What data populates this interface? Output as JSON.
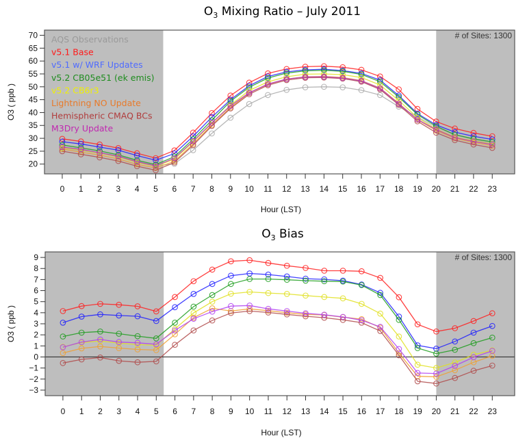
{
  "chart_data": [
    {
      "type": "line",
      "title": "O3 Mixing Ratio – July 2011",
      "title_parts": {
        "pre": "O",
        "sub": "3",
        "post": " Mixing Ratio – July 2011"
      },
      "xlabel": "Hour (LST)",
      "ylabel": "O3 ( ppb )",
      "x": [
        0,
        1,
        2,
        3,
        4,
        5,
        6,
        7,
        8,
        9,
        10,
        11,
        12,
        13,
        14,
        15,
        16,
        17,
        18,
        19,
        20,
        21,
        22,
        23
      ],
      "x_tick_labels": [
        "0",
        "1",
        "2",
        "3",
        "4",
        "5",
        "6",
        "7",
        "8",
        "9",
        "10",
        "11",
        "12",
        "13",
        "14",
        "15",
        "16",
        "17",
        "18",
        "19",
        "20",
        "21",
        "22",
        "23"
      ],
      "ylim": [
        16.2,
        72
      ],
      "xlim": [
        -0.95,
        24.2
      ],
      "y_ticks": [
        20,
        25,
        30,
        35,
        40,
        45,
        50,
        55,
        60,
        65,
        70
      ],
      "y_tick_labels": [
        "20",
        "25",
        "30",
        "35",
        "40",
        "45",
        "50",
        "55",
        "60",
        "65",
        "70"
      ],
      "shaded_ranges": [
        [
          -0.95,
          5.4
        ],
        [
          20,
          24.2
        ]
      ],
      "zero_line": false,
      "annotation": "# of Sites: 1300",
      "annotation_position": "top-right",
      "legend_position": "top-left",
      "grid": false,
      "series": [
        {
          "name": "AQS Observations",
          "color": "#a9a9a9",
          "legend_color": "#9a9a9a",
          "values": [
            26.0,
            25.2,
            24.2,
            23.2,
            21.2,
            19.3,
            20.1,
            25.4,
            31.9,
            38.0,
            43.3,
            46.8,
            48.8,
            49.8,
            50.0,
            49.8,
            48.7,
            46.8,
            42.3,
            38.3,
            34.3,
            31.3,
            29.5,
            28.0
          ]
        },
        {
          "name": "v5.1 Base",
          "color": "#ff2020",
          "legend_color": "#ff1a1a",
          "values": [
            29.8,
            28.8,
            27.6,
            26.2,
            24.2,
            22.3,
            25.3,
            32.2,
            39.8,
            46.6,
            51.6,
            55.2,
            56.9,
            57.8,
            58.0,
            57.6,
            56.6,
            54.0,
            49.0,
            41.4,
            36.5,
            33.8,
            32.1,
            30.8
          ]
        },
        {
          "name": "v5.1 w/ WRF Updates",
          "color": "#2020ff",
          "legend_color": "#4f6bff",
          "values": [
            28.7,
            27.8,
            26.6,
            25.4,
            23.3,
            21.5,
            24.1,
            30.8,
            38.2,
            45.0,
            50.4,
            54.0,
            55.8,
            56.6,
            56.8,
            56.3,
            55.2,
            52.6,
            46.6,
            39.6,
            35.2,
            32.4,
            30.8,
            29.6
          ]
        },
        {
          "name": "v5.2 CB05e51 (ek emis)",
          "color": "#1e9e1e",
          "legend_color": "#1e8c1e",
          "values": [
            27.4,
            26.3,
            25.1,
            23.6,
            21.5,
            19.8,
            22.9,
            29.7,
            37.0,
            44.4,
            49.8,
            53.4,
            55.3,
            56.2,
            56.4,
            56.0,
            54.8,
            52.0,
            46.0,
            39.2,
            34.7,
            31.4,
            29.8,
            28.6
          ]
        },
        {
          "name": "v5.2 CB6r3",
          "color": "#e0e020",
          "legend_color": "#f0f000",
          "values": [
            26.3,
            25.4,
            24.2,
            22.8,
            20.6,
            19.1,
            21.9,
            28.6,
            35.9,
            42.9,
            48.6,
            51.9,
            53.9,
            54.9,
            55.0,
            54.7,
            53.6,
            50.7,
            44.7,
            38.0,
            33.6,
            30.5,
            29.0,
            27.8
          ]
        },
        {
          "name": "Lightning NO Update",
          "color": "#f0a030",
          "legend_color": "#e87a2a",
          "values": [
            25.8,
            24.6,
            23.5,
            22.0,
            19.9,
            18.5,
            21.1,
            27.8,
            35.2,
            42.0,
            47.6,
            51.0,
            53.0,
            53.9,
            54.0,
            53.6,
            52.4,
            49.5,
            43.6,
            37.2,
            33.0,
            30.0,
            28.4,
            27.1
          ]
        },
        {
          "name": "Hemispheric CMAQ BCs",
          "color": "#b04a4a",
          "legend_color": "#b03c3c",
          "values": [
            25.0,
            23.8,
            22.6,
            21.2,
            19.2,
            17.6,
            20.6,
            27.3,
            34.8,
            41.6,
            47.1,
            50.6,
            52.6,
            53.5,
            53.6,
            53.2,
            52.0,
            49.0,
            43.0,
            36.6,
            32.2,
            29.3,
            27.6,
            26.3
          ]
        },
        {
          "name": "M3Dry Update",
          "color": "#b030c0",
          "legend_color": "#c028b0",
          "values": [
            26.6,
            25.7,
            24.4,
            23.0,
            20.9,
            19.3,
            22.3,
            28.9,
            36.0,
            42.6,
            47.7,
            51.1,
            53.0,
            53.8,
            53.9,
            53.4,
            52.3,
            49.4,
            43.4,
            37.3,
            33.4,
            30.3,
            28.8,
            27.6
          ]
        }
      ]
    },
    {
      "type": "line",
      "title": "O3 Bias",
      "title_parts": {
        "pre": "O",
        "sub": "3",
        "post": " Bias"
      },
      "xlabel": "Hour (LST)",
      "ylabel": "O3 ( ppb )",
      "x": [
        0,
        1,
        2,
        3,
        4,
        5,
        6,
        7,
        8,
        9,
        10,
        11,
        12,
        13,
        14,
        15,
        16,
        17,
        18,
        19,
        20,
        21,
        22,
        23
      ],
      "x_tick_labels": [
        "0",
        "1",
        "2",
        "3",
        "4",
        "5",
        "6",
        "7",
        "8",
        "9",
        "10",
        "11",
        "12",
        "13",
        "14",
        "15",
        "16",
        "17",
        "18",
        "19",
        "20",
        "21",
        "22",
        "23"
      ],
      "ylim": [
        -3.5,
        9.5
      ],
      "xlim": [
        -0.95,
        24.2
      ],
      "y_ticks": [
        -3,
        -2,
        -1,
        0,
        1,
        2,
        3,
        4,
        5,
        6,
        7,
        8,
        9
      ],
      "y_tick_labels": [
        "−3",
        "−2",
        "−1",
        "0",
        "1",
        "2",
        "3",
        "4",
        "5",
        "6",
        "7",
        "8",
        "9"
      ],
      "shaded_ranges": [
        [
          -0.95,
          5.4
        ],
        [
          20,
          24.2
        ]
      ],
      "zero_line": true,
      "annotation": "# of Sites: 1300",
      "annotation_position": "top-right",
      "grid": false,
      "series": [
        {
          "name": "v5.1 Base",
          "color": "#ff2020",
          "values": [
            4.15,
            4.6,
            4.8,
            4.72,
            4.58,
            4.12,
            5.42,
            6.85,
            7.9,
            8.65,
            8.75,
            8.5,
            8.25,
            8.05,
            7.8,
            7.8,
            7.75,
            7.15,
            5.4,
            2.95,
            2.3,
            2.6,
            3.25,
            3.95
          ]
        },
        {
          "name": "v5.1 w/ WRF Updates",
          "color": "#2020ff",
          "values": [
            3.1,
            3.65,
            3.85,
            3.75,
            3.68,
            3.25,
            4.5,
            5.7,
            6.6,
            7.35,
            7.55,
            7.45,
            7.28,
            7.08,
            7.02,
            6.9,
            6.55,
            5.8,
            3.65,
            1.05,
            0.75,
            1.4,
            2.2,
            2.8
          ]
        },
        {
          "name": "v5.2 CB05e51 (ek emis)",
          "color": "#1e9e1e",
          "values": [
            1.85,
            2.2,
            2.3,
            2.1,
            1.88,
            1.68,
            3.1,
            4.55,
            5.6,
            6.6,
            7.05,
            7.05,
            6.98,
            6.9,
            6.85,
            6.82,
            6.5,
            5.6,
            3.35,
            0.8,
            0.3,
            0.65,
            1.25,
            1.75
          ]
        },
        {
          "name": "v5.2 CB6r3",
          "color": "#e0e020",
          "values": [
            0.92,
            1.3,
            1.45,
            1.25,
            1.12,
            1.05,
            2.55,
            3.98,
            5.0,
            5.72,
            5.88,
            5.78,
            5.7,
            5.55,
            5.42,
            5.3,
            4.8,
            3.92,
            1.85,
            -0.7,
            -1.0,
            -0.5,
            0.2,
            0.6
          ]
        },
        {
          "name": "Lightning NO Update",
          "color": "#f0a030",
          "values": [
            0.35,
            0.78,
            0.95,
            0.8,
            0.68,
            0.62,
            2.05,
            3.55,
            4.4,
            4.15,
            4.35,
            4.18,
            4.0,
            3.85,
            3.8,
            3.6,
            3.42,
            2.65,
            0.35,
            -1.75,
            -1.8,
            -1.2,
            -0.48,
            0.1
          ]
        },
        {
          "name": "Hemispheric CMAQ BCs",
          "color": "#b04a4a",
          "values": [
            -0.55,
            -0.22,
            -0.05,
            -0.35,
            -0.48,
            -0.4,
            1.1,
            2.4,
            3.3,
            3.98,
            4.15,
            4.02,
            3.85,
            3.68,
            3.55,
            3.35,
            3.1,
            2.35,
            0.15,
            -2.2,
            -2.4,
            -1.9,
            -1.25,
            -0.78
          ]
        },
        {
          "name": "M3Dry Update",
          "color": "#b040f0",
          "values": [
            0.88,
            1.35,
            1.58,
            1.35,
            1.28,
            1.15,
            2.4,
            3.45,
            4.1,
            4.6,
            4.65,
            4.35,
            4.15,
            3.95,
            3.82,
            3.62,
            3.32,
            2.72,
            0.72,
            -1.45,
            -1.5,
            -0.8,
            -0.02,
            0.55
          ]
        }
      ]
    }
  ]
}
